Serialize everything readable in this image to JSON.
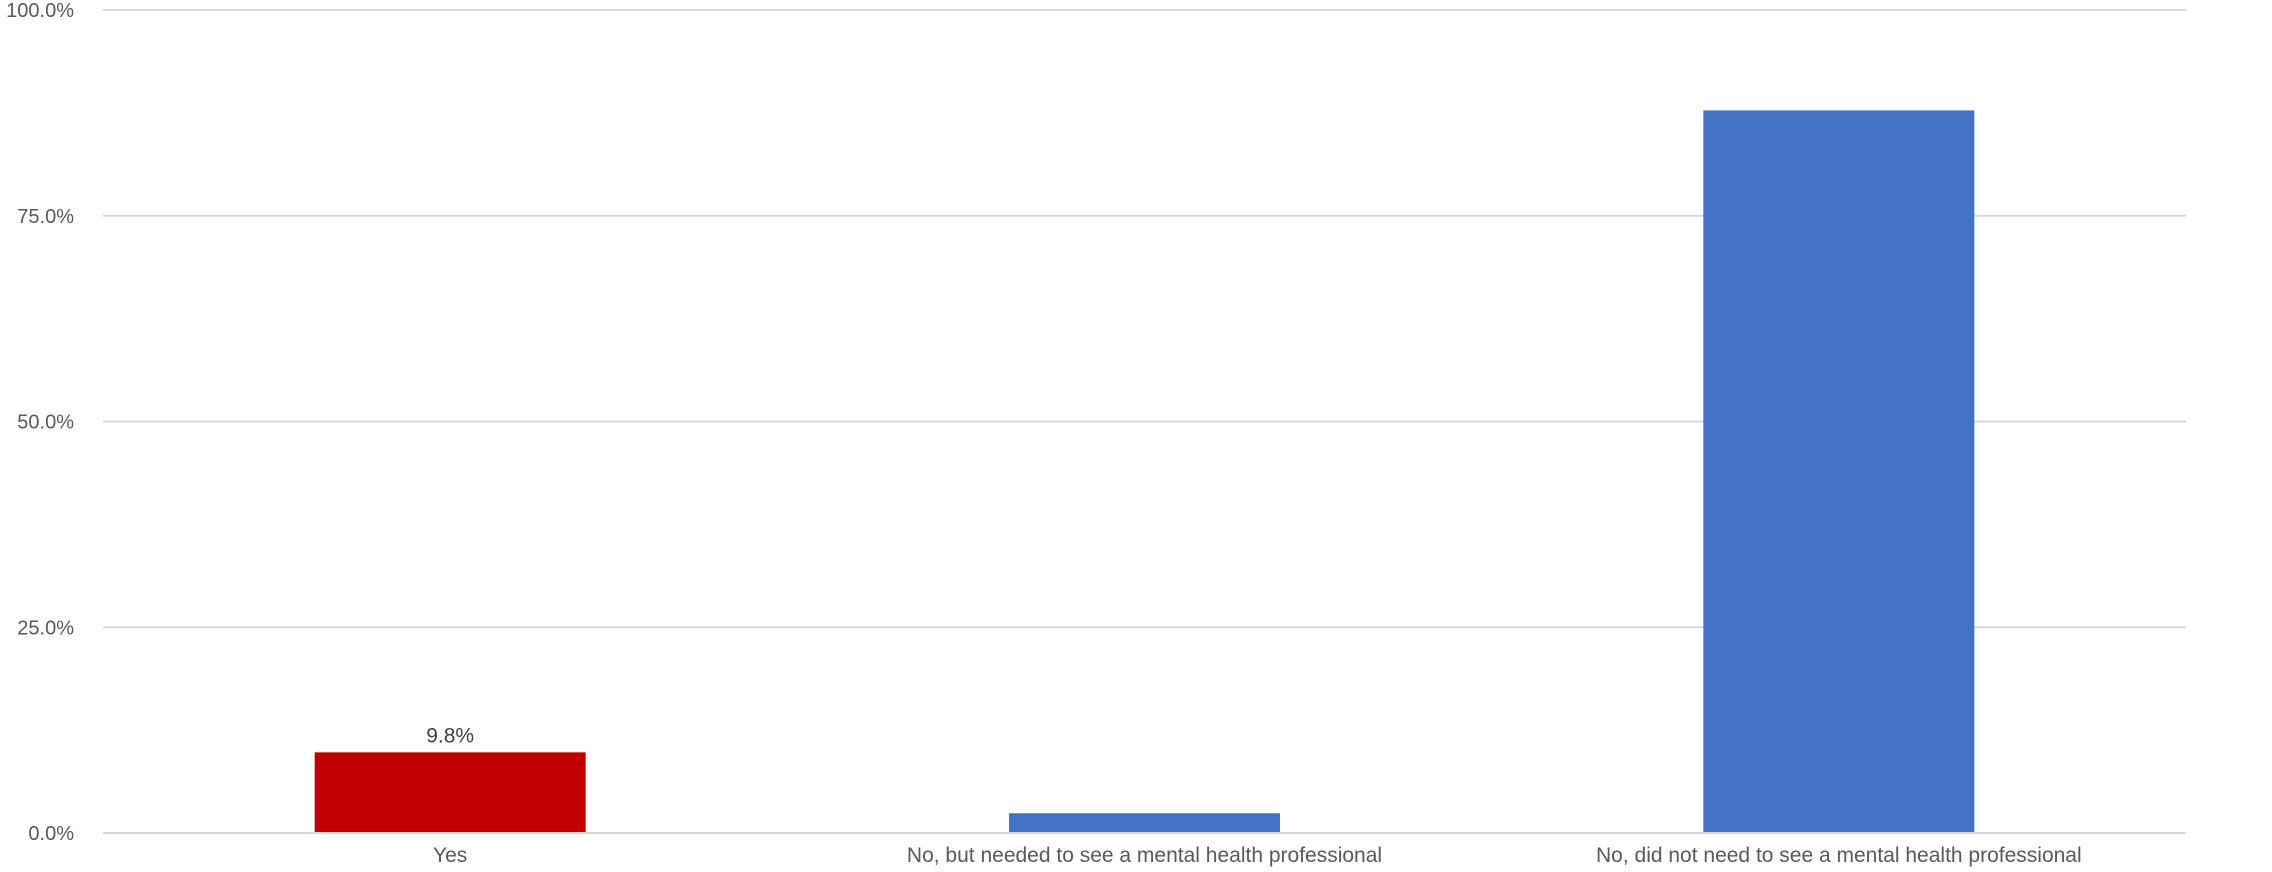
{
  "chart_data": {
    "type": "bar",
    "categories": [
      "Yes",
      "No, but needed to see a mental health professional",
      "No, did not need to see a mental health professional"
    ],
    "values": [
      9.8,
      2.4,
      87.8
    ],
    "bar_colors": [
      "#c00000",
      "#4472c4",
      "#4472c4"
    ],
    "data_labels": [
      "9.8%",
      null,
      null
    ],
    "ylim": [
      0,
      100
    ],
    "y_ticks": [
      0,
      25,
      50,
      75,
      100
    ],
    "y_tick_labels": [
      "0.0%",
      "25.0%",
      "50.0%",
      "75.0%",
      "100.0%"
    ],
    "grid": true,
    "title": "",
    "xlabel": "",
    "ylabel": ""
  }
}
